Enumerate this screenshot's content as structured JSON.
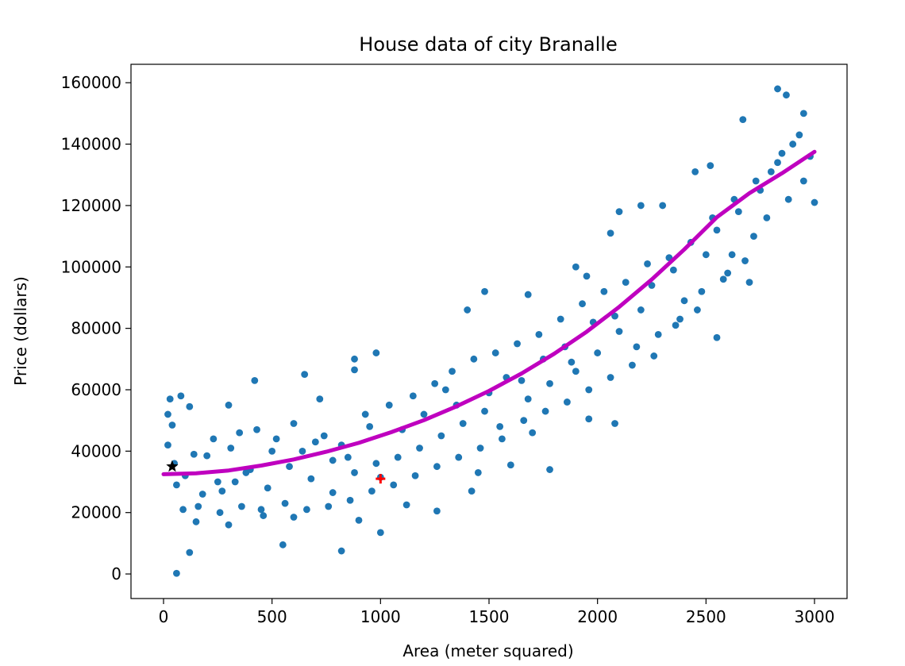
{
  "chart_data": {
    "type": "scatter",
    "title": "House data of city Branalle",
    "xlabel": "Area (meter squared)",
    "ylabel": "Price (dollars)",
    "xlim": [
      -150,
      3150
    ],
    "ylim": [
      -8000,
      166000
    ],
    "x_ticks": [
      0,
      500,
      1000,
      1500,
      2000,
      2500,
      3000
    ],
    "x_tick_labels": [
      "0",
      "500",
      "1000",
      "1500",
      "2000",
      "2500",
      "3000"
    ],
    "y_ticks": [
      0,
      20000,
      40000,
      60000,
      80000,
      100000,
      120000,
      140000,
      160000
    ],
    "y_tick_labels": [
      "0",
      "20000",
      "40000",
      "60000",
      "80000",
      "100000",
      "120000",
      "140000",
      "160000"
    ],
    "grid": false,
    "legend": "none",
    "colors": {
      "scatter": "#1f77b4",
      "fit_line": "#bf00bf",
      "black_star": "#000000",
      "red_plus": "#ff0000"
    },
    "series": [
      {
        "kind": "scatter",
        "marker": "circle",
        "color": "#1f77b4",
        "points": [
          [
            60,
            200
          ],
          [
            120,
            7000
          ],
          [
            820,
            7500
          ],
          [
            1000,
            13500
          ],
          [
            550,
            9500
          ],
          [
            30,
            57000
          ],
          [
            80,
            58000
          ],
          [
            120,
            54500
          ],
          [
            20,
            42000
          ],
          [
            40,
            48500
          ],
          [
            300,
            55000
          ],
          [
            420,
            63000
          ],
          [
            650,
            65000
          ],
          [
            720,
            57000
          ],
          [
            880,
            66500
          ],
          [
            980,
            72000
          ],
          [
            880,
            70000
          ],
          [
            1300,
            60000
          ],
          [
            1400,
            86000
          ],
          [
            1480,
            92000
          ],
          [
            1680,
            91000
          ],
          [
            1900,
            100000
          ],
          [
            1950,
            97000
          ],
          [
            2060,
            111000
          ],
          [
            2100,
            118000
          ],
          [
            2200,
            120000
          ],
          [
            2300,
            120000
          ],
          [
            2450,
            131000
          ],
          [
            2520,
            133000
          ],
          [
            2670,
            148000
          ],
          [
            2830,
            158000
          ],
          [
            2870,
            156000
          ],
          [
            2950,
            150000
          ],
          [
            2550,
            77000
          ],
          [
            2700,
            95000
          ],
          [
            3000,
            121000
          ],
          [
            2080,
            49000
          ],
          [
            1960,
            50500
          ],
          [
            1700,
            46000
          ],
          [
            1780,
            34000
          ],
          [
            1600,
            35500
          ],
          [
            1420,
            27000
          ],
          [
            1450,
            33000
          ],
          [
            1260,
            20500
          ],
          [
            1120,
            22500
          ],
          [
            900,
            17500
          ],
          [
            600,
            18500
          ],
          [
            300,
            16000
          ],
          [
            150,
            17000
          ],
          [
            450,
            21000
          ],
          [
            1000,
            31500
          ],
          [
            780,
            26500
          ],
          [
            850,
            38000
          ],
          [
            700,
            43000
          ],
          [
            500,
            40000
          ],
          [
            380,
            33000
          ],
          [
            250,
            30000
          ],
          [
            200,
            38500
          ],
          [
            350,
            46000
          ],
          [
            600,
            49000
          ],
          [
            950,
            48000
          ],
          [
            1100,
            47000
          ],
          [
            1200,
            52000
          ],
          [
            1350,
            55000
          ],
          [
            1500,
            59000
          ],
          [
            1550,
            48000
          ],
          [
            1650,
            63000
          ],
          [
            1750,
            70000
          ],
          [
            1850,
            74000
          ],
          [
            1900,
            66000
          ],
          [
            2000,
            72000
          ],
          [
            2100,
            79000
          ],
          [
            2200,
            86000
          ],
          [
            2250,
            94000
          ],
          [
            2350,
            99000
          ],
          [
            2400,
            89000
          ],
          [
            2500,
            104000
          ],
          [
            2550,
            112000
          ],
          [
            2600,
            98000
          ],
          [
            2650,
            118000
          ],
          [
            2750,
            125000
          ],
          [
            2800,
            131000
          ],
          [
            2850,
            137000
          ],
          [
            2900,
            140000
          ],
          [
            2950,
            128000
          ],
          [
            2980,
            136000
          ],
          [
            2720,
            110000
          ],
          [
            2620,
            104000
          ],
          [
            2480,
            92000
          ],
          [
            2380,
            83000
          ],
          [
            2280,
            78000
          ],
          [
            2180,
            74000
          ],
          [
            2080,
            84000
          ],
          [
            1980,
            82000
          ],
          [
            1880,
            69000
          ],
          [
            1780,
            62000
          ],
          [
            1680,
            57000
          ],
          [
            1580,
            64000
          ],
          [
            1480,
            53000
          ],
          [
            1380,
            49000
          ],
          [
            1280,
            45000
          ],
          [
            1180,
            41000
          ],
          [
            1080,
            38000
          ],
          [
            980,
            36000
          ],
          [
            880,
            33000
          ],
          [
            780,
            37000
          ],
          [
            680,
            31000
          ],
          [
            580,
            35000
          ],
          [
            480,
            28000
          ],
          [
            400,
            34000
          ],
          [
            330,
            30000
          ],
          [
            270,
            27000
          ],
          [
            180,
            26000
          ],
          [
            100,
            32000
          ],
          [
            60,
            29000
          ],
          [
            230,
            44000
          ],
          [
            140,
            39000
          ],
          [
            310,
            41000
          ],
          [
            430,
            47000
          ],
          [
            520,
            44000
          ],
          [
            640,
            40000
          ],
          [
            740,
            45000
          ],
          [
            820,
            42000
          ],
          [
            930,
            52000
          ],
          [
            1040,
            55000
          ],
          [
            1150,
            58000
          ],
          [
            1250,
            62000
          ],
          [
            1330,
            66000
          ],
          [
            1430,
            70000
          ],
          [
            1530,
            72000
          ],
          [
            1630,
            75000
          ],
          [
            1730,
            78000
          ],
          [
            1830,
            83000
          ],
          [
            1930,
            88000
          ],
          [
            2030,
            92000
          ],
          [
            2130,
            95000
          ],
          [
            2230,
            101000
          ],
          [
            2330,
            103000
          ],
          [
            2430,
            108000
          ],
          [
            2530,
            116000
          ],
          [
            2630,
            122000
          ],
          [
            2730,
            128000
          ],
          [
            2830,
            134000
          ],
          [
            2930,
            143000
          ],
          [
            2880,
            122000
          ],
          [
            2780,
            116000
          ],
          [
            2680,
            102000
          ],
          [
            2580,
            96000
          ],
          [
            2460,
            86000
          ],
          [
            2360,
            81000
          ],
          [
            2260,
            71000
          ],
          [
            2160,
            68000
          ],
          [
            2060,
            64000
          ],
          [
            1960,
            60000
          ],
          [
            1860,
            56000
          ],
          [
            1760,
            53000
          ],
          [
            1660,
            50000
          ],
          [
            1560,
            44000
          ],
          [
            1460,
            41000
          ],
          [
            1360,
            38000
          ],
          [
            1260,
            35000
          ],
          [
            1160,
            32000
          ],
          [
            1060,
            29000
          ],
          [
            960,
            27000
          ],
          [
            860,
            24000
          ],
          [
            760,
            22000
          ],
          [
            660,
            21000
          ],
          [
            560,
            23000
          ],
          [
            460,
            19000
          ],
          [
            360,
            22000
          ],
          [
            260,
            20000
          ],
          [
            160,
            22000
          ],
          [
            90,
            21000
          ],
          [
            50,
            36000
          ],
          [
            20,
            52000
          ]
        ]
      },
      {
        "kind": "line",
        "name": "",
        "color": "#bf00bf",
        "points": [
          [
            0,
            32500
          ],
          [
            150,
            32800
          ],
          [
            300,
            33700
          ],
          [
            450,
            35300
          ],
          [
            600,
            37300
          ],
          [
            750,
            39800
          ],
          [
            900,
            42700
          ],
          [
            1050,
            46200
          ],
          [
            1200,
            50100
          ],
          [
            1350,
            54600
          ],
          [
            1500,
            59600
          ],
          [
            1650,
            65300
          ],
          [
            1800,
            71700
          ],
          [
            1950,
            78900
          ],
          [
            2100,
            87000
          ],
          [
            2250,
            95900
          ],
          [
            2400,
            105700
          ],
          [
            2550,
            116200
          ],
          [
            2700,
            124000
          ],
          [
            2850,
            130500
          ],
          [
            3000,
            137500
          ]
        ]
      },
      {
        "kind": "marker",
        "marker": "star",
        "color": "#000000",
        "points": [
          [
            40,
            35000
          ]
        ]
      },
      {
        "kind": "marker",
        "marker": "plus",
        "color": "#ff0000",
        "points": [
          [
            1000,
            31000
          ]
        ]
      }
    ]
  }
}
